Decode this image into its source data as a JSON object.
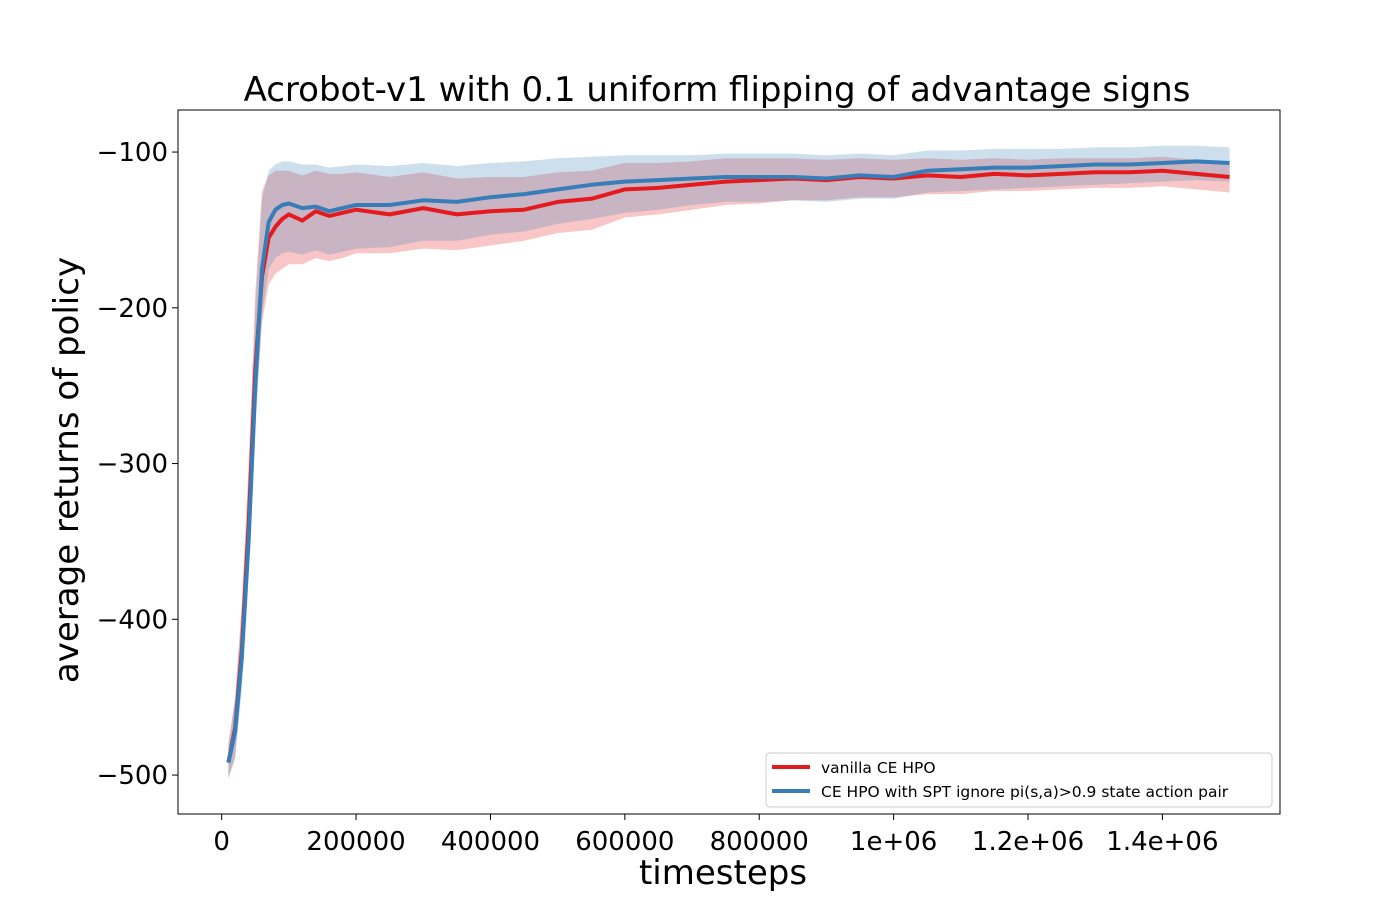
{
  "chart_data": {
    "type": "line",
    "title": "Acrobot-v1 with 0.1 uniform flipping of advantage signs",
    "xlabel": "timesteps",
    "ylabel": "average returns of policy",
    "xlim": [
      -65000,
      1575000
    ],
    "ylim": [
      -525,
      -73
    ],
    "xticks": [
      {
        "value": 0,
        "label": "0"
      },
      {
        "value": 200000,
        "label": "200000"
      },
      {
        "value": 400000,
        "label": "400000"
      },
      {
        "value": 600000,
        "label": "600000"
      },
      {
        "value": 800000,
        "label": "800000"
      },
      {
        "value": 1000000,
        "label": "1e+06"
      },
      {
        "value": 1200000,
        "label": "1.2e+06"
      },
      {
        "value": 1400000,
        "label": "1.4e+06"
      }
    ],
    "yticks": [
      {
        "value": -100,
        "label": "−100"
      },
      {
        "value": -200,
        "label": "−200"
      },
      {
        "value": -300,
        "label": "−300"
      },
      {
        "value": -400,
        "label": "−400"
      },
      {
        "value": -500,
        "label": "−500"
      }
    ],
    "grid": false,
    "legend_position": "lower-right",
    "series": [
      {
        "name": "vanilla CE HPO",
        "color": "#e41a1c",
        "x": [
          10000,
          20000,
          30000,
          40000,
          50000,
          60000,
          70000,
          80000,
          90000,
          100000,
          120000,
          140000,
          160000,
          180000,
          200000,
          250000,
          300000,
          350000,
          400000,
          450000,
          500000,
          550000,
          600000,
          650000,
          700000,
          750000,
          800000,
          850000,
          900000,
          950000,
          1000000,
          1050000,
          1100000,
          1150000,
          1200000,
          1250000,
          1300000,
          1350000,
          1400000,
          1450000,
          1500000
        ],
        "values": [
          -492,
          -470,
          -420,
          -340,
          -240,
          -180,
          -155,
          -148,
          -143,
          -140,
          -144,
          -138,
          -141,
          -139,
          -137,
          -140,
          -136,
          -140,
          -138,
          -137,
          -132,
          -130,
          -124,
          -123,
          -121,
          -119,
          -118,
          -117,
          -118,
          -116,
          -117,
          -115,
          -116,
          -114,
          -115,
          -114,
          -113,
          -113,
          -112,
          -114,
          -116
        ],
        "lower": [
          -502,
          -488,
          -440,
          -360,
          -270,
          -210,
          -185,
          -178,
          -175,
          -172,
          -172,
          -168,
          -170,
          -168,
          -165,
          -165,
          -162,
          -163,
          -160,
          -157,
          -152,
          -150,
          -142,
          -140,
          -137,
          -134,
          -133,
          -131,
          -131,
          -129,
          -129,
          -127,
          -127,
          -125,
          -125,
          -124,
          -123,
          -123,
          -122,
          -124,
          -126
        ],
        "upper": [
          -480,
          -450,
          -390,
          -300,
          -190,
          -125,
          -115,
          -112,
          -112,
          -112,
          -115,
          -112,
          -114,
          -114,
          -113,
          -116,
          -113,
          -117,
          -116,
          -116,
          -113,
          -112,
          -107,
          -107,
          -106,
          -104,
          -104,
          -104,
          -105,
          -104,
          -105,
          -104,
          -105,
          -104,
          -105,
          -104,
          -104,
          -104,
          -103,
          -105,
          -107
        ]
      },
      {
        "name": "CE HPO with SPT ignore pi(s,a)>0.9 state action pair",
        "color": "#377eb8",
        "x": [
          10000,
          20000,
          30000,
          40000,
          50000,
          60000,
          70000,
          80000,
          90000,
          100000,
          120000,
          140000,
          160000,
          180000,
          200000,
          250000,
          300000,
          350000,
          400000,
          450000,
          500000,
          550000,
          600000,
          650000,
          700000,
          750000,
          800000,
          850000,
          900000,
          950000,
          1000000,
          1050000,
          1100000,
          1150000,
          1200000,
          1250000,
          1300000,
          1350000,
          1400000,
          1450000,
          1500000
        ],
        "values": [
          -492,
          -472,
          -425,
          -350,
          -250,
          -175,
          -145,
          -137,
          -134,
          -133,
          -136,
          -135,
          -138,
          -136,
          -134,
          -134,
          -131,
          -132,
          -129,
          -127,
          -124,
          -121,
          -119,
          -118,
          -117,
          -116,
          -116,
          -116,
          -117,
          -115,
          -116,
          -112,
          -111,
          -110,
          -110,
          -109,
          -108,
          -108,
          -107,
          -106,
          -107
        ],
        "lower": [
          -502,
          -490,
          -445,
          -370,
          -280,
          -205,
          -175,
          -168,
          -165,
          -164,
          -166,
          -163,
          -166,
          -164,
          -162,
          -161,
          -157,
          -157,
          -153,
          -151,
          -146,
          -143,
          -139,
          -137,
          -134,
          -132,
          -132,
          -131,
          -132,
          -130,
          -130,
          -126,
          -125,
          -124,
          -123,
          -122,
          -121,
          -120,
          -119,
          -118,
          -119
        ],
        "upper": [
          -480,
          -452,
          -395,
          -310,
          -200,
          -130,
          -112,
          -108,
          -106,
          -106,
          -108,
          -108,
          -110,
          -109,
          -108,
          -109,
          -107,
          -109,
          -107,
          -106,
          -104,
          -103,
          -102,
          -102,
          -102,
          -101,
          -101,
          -101,
          -102,
          -101,
          -102,
          -99,
          -99,
          -98,
          -98,
          -98,
          -97,
          -97,
          -96,
          -96,
          -97
        ]
      }
    ]
  }
}
